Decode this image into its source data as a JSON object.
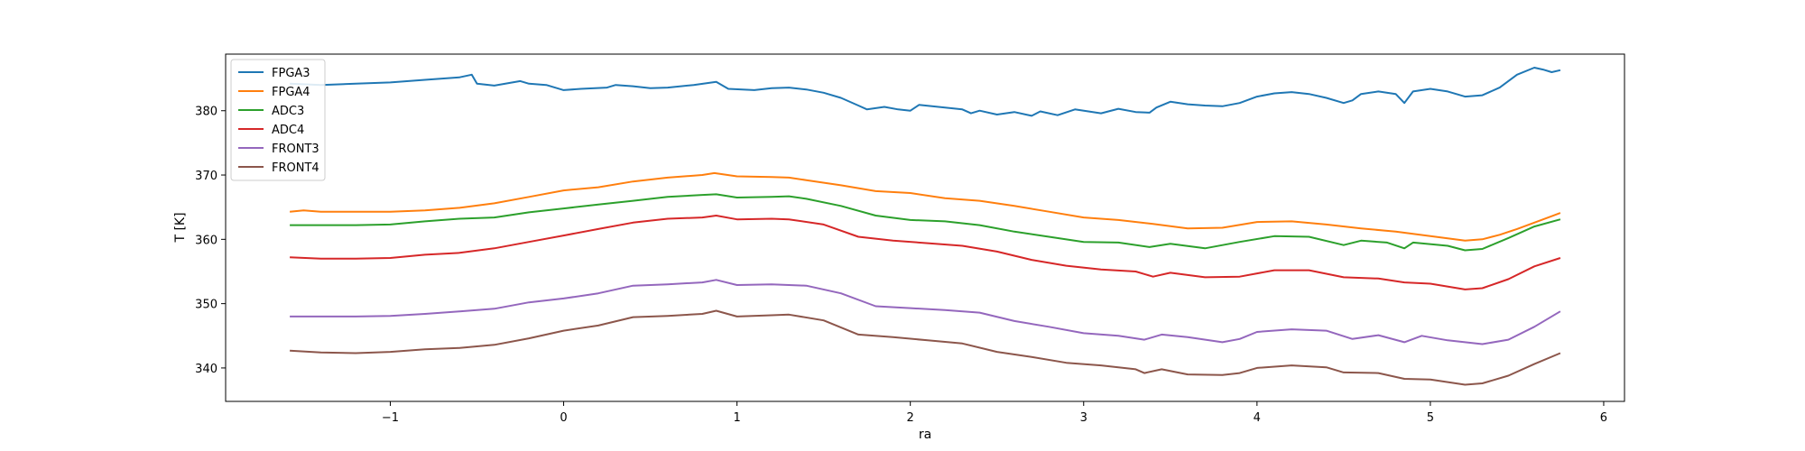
{
  "chart_data": {
    "type": "line",
    "title": "",
    "xlabel": "ra",
    "ylabel": "T [K]",
    "xlim": [
      -1.95,
      6.12
    ],
    "ylim": [
      334.8,
      388.8
    ],
    "xticks": [
      -1,
      0,
      1,
      2,
      3,
      4,
      5,
      6
    ],
    "yticks": [
      340,
      350,
      360,
      370,
      380
    ],
    "grid": false,
    "legend_position": "top-left",
    "series": [
      {
        "name": "FPGA3",
        "color": "#1f77b4",
        "points": [
          [
            -1.58,
            384.2
          ],
          [
            -1.4,
            384.0
          ],
          [
            -1.2,
            384.2
          ],
          [
            -1.0,
            384.4
          ],
          [
            -0.8,
            384.8
          ],
          [
            -0.6,
            385.2
          ],
          [
            -0.53,
            385.6
          ],
          [
            -0.5,
            384.2
          ],
          [
            -0.4,
            383.9
          ],
          [
            -0.25,
            384.6
          ],
          [
            -0.2,
            384.2
          ],
          [
            -0.1,
            384.0
          ],
          [
            0.0,
            383.2
          ],
          [
            0.1,
            383.4
          ],
          [
            0.25,
            383.6
          ],
          [
            0.3,
            384.0
          ],
          [
            0.4,
            383.8
          ],
          [
            0.5,
            383.5
          ],
          [
            0.6,
            383.6
          ],
          [
            0.75,
            384.0
          ],
          [
            0.88,
            384.5
          ],
          [
            0.95,
            383.4
          ],
          [
            1.1,
            383.2
          ],
          [
            1.2,
            383.5
          ],
          [
            1.3,
            383.6
          ],
          [
            1.4,
            383.3
          ],
          [
            1.5,
            382.8
          ],
          [
            1.6,
            382.0
          ],
          [
            1.7,
            380.8
          ],
          [
            1.75,
            380.2
          ],
          [
            1.85,
            380.6
          ],
          [
            1.93,
            380.2
          ],
          [
            2.0,
            380.0
          ],
          [
            2.05,
            380.9
          ],
          [
            2.2,
            380.5
          ],
          [
            2.3,
            380.2
          ],
          [
            2.35,
            379.6
          ],
          [
            2.4,
            380.0
          ],
          [
            2.5,
            379.4
          ],
          [
            2.6,
            379.8
          ],
          [
            2.7,
            379.2
          ],
          [
            2.75,
            379.9
          ],
          [
            2.85,
            379.3
          ],
          [
            2.95,
            380.2
          ],
          [
            3.1,
            379.6
          ],
          [
            3.2,
            380.3
          ],
          [
            3.3,
            379.8
          ],
          [
            3.38,
            379.7
          ],
          [
            3.42,
            380.5
          ],
          [
            3.5,
            381.4
          ],
          [
            3.6,
            381.0
          ],
          [
            3.7,
            380.8
          ],
          [
            3.8,
            380.7
          ],
          [
            3.9,
            381.2
          ],
          [
            4.0,
            382.2
          ],
          [
            4.1,
            382.7
          ],
          [
            4.2,
            382.9
          ],
          [
            4.3,
            382.6
          ],
          [
            4.4,
            382.0
          ],
          [
            4.5,
            381.2
          ],
          [
            4.55,
            381.6
          ],
          [
            4.6,
            382.6
          ],
          [
            4.7,
            383.0
          ],
          [
            4.8,
            382.6
          ],
          [
            4.85,
            381.2
          ],
          [
            4.9,
            383.0
          ],
          [
            5.0,
            383.4
          ],
          [
            5.1,
            383.0
          ],
          [
            5.2,
            382.2
          ],
          [
            5.3,
            382.4
          ],
          [
            5.4,
            383.6
          ],
          [
            5.5,
            385.6
          ],
          [
            5.6,
            386.7
          ],
          [
            5.65,
            386.4
          ],
          [
            5.7,
            386.0
          ],
          [
            5.75,
            386.3
          ]
        ]
      },
      {
        "name": "FPGA4",
        "color": "#ff7f0e",
        "points": [
          [
            -1.58,
            364.3
          ],
          [
            -1.5,
            364.5
          ],
          [
            -1.4,
            364.3
          ],
          [
            -1.2,
            364.3
          ],
          [
            -1.0,
            364.3
          ],
          [
            -0.8,
            364.5
          ],
          [
            -0.6,
            364.9
          ],
          [
            -0.4,
            365.6
          ],
          [
            -0.2,
            366.6
          ],
          [
            0.0,
            367.6
          ],
          [
            0.2,
            368.1
          ],
          [
            0.4,
            369.0
          ],
          [
            0.6,
            369.6
          ],
          [
            0.8,
            370.0
          ],
          [
            0.87,
            370.3
          ],
          [
            1.0,
            369.8
          ],
          [
            1.2,
            369.7
          ],
          [
            1.3,
            369.6
          ],
          [
            1.4,
            369.2
          ],
          [
            1.6,
            368.4
          ],
          [
            1.8,
            367.5
          ],
          [
            2.0,
            367.2
          ],
          [
            2.2,
            366.4
          ],
          [
            2.4,
            366.0
          ],
          [
            2.6,
            365.2
          ],
          [
            2.8,
            364.3
          ],
          [
            3.0,
            363.4
          ],
          [
            3.2,
            363.0
          ],
          [
            3.4,
            362.4
          ],
          [
            3.6,
            361.7
          ],
          [
            3.8,
            361.8
          ],
          [
            4.0,
            362.7
          ],
          [
            4.2,
            362.8
          ],
          [
            4.4,
            362.3
          ],
          [
            4.6,
            361.7
          ],
          [
            4.8,
            361.2
          ],
          [
            5.0,
            360.5
          ],
          [
            5.2,
            359.8
          ],
          [
            5.3,
            360.0
          ],
          [
            5.4,
            360.7
          ],
          [
            5.5,
            361.6
          ],
          [
            5.6,
            362.6
          ],
          [
            5.7,
            363.6
          ],
          [
            5.75,
            364.1
          ]
        ]
      },
      {
        "name": "ADC3",
        "color": "#2ca02c",
        "points": [
          [
            -1.58,
            362.2
          ],
          [
            -1.4,
            362.2
          ],
          [
            -1.2,
            362.2
          ],
          [
            -1.0,
            362.3
          ],
          [
            -0.8,
            362.8
          ],
          [
            -0.6,
            363.2
          ],
          [
            -0.4,
            363.4
          ],
          [
            -0.2,
            364.2
          ],
          [
            0.0,
            364.8
          ],
          [
            0.2,
            365.4
          ],
          [
            0.4,
            366.0
          ],
          [
            0.6,
            366.6
          ],
          [
            0.8,
            366.9
          ],
          [
            0.88,
            367.0
          ],
          [
            1.0,
            366.5
          ],
          [
            1.2,
            366.6
          ],
          [
            1.3,
            366.7
          ],
          [
            1.4,
            366.3
          ],
          [
            1.6,
            365.2
          ],
          [
            1.8,
            363.7
          ],
          [
            2.0,
            363.0
          ],
          [
            2.2,
            362.8
          ],
          [
            2.4,
            362.2
          ],
          [
            2.6,
            361.2
          ],
          [
            2.8,
            360.4
          ],
          [
            3.0,
            359.6
          ],
          [
            3.2,
            359.5
          ],
          [
            3.38,
            358.8
          ],
          [
            3.5,
            359.3
          ],
          [
            3.7,
            358.6
          ],
          [
            3.9,
            359.6
          ],
          [
            4.1,
            360.5
          ],
          [
            4.3,
            360.4
          ],
          [
            4.5,
            359.1
          ],
          [
            4.6,
            359.8
          ],
          [
            4.75,
            359.5
          ],
          [
            4.85,
            358.6
          ],
          [
            4.9,
            359.5
          ],
          [
            5.1,
            359.0
          ],
          [
            5.2,
            358.3
          ],
          [
            5.3,
            358.5
          ],
          [
            5.45,
            360.2
          ],
          [
            5.6,
            362.0
          ],
          [
            5.75,
            363.1
          ]
        ]
      },
      {
        "name": "ADC4",
        "color": "#d62728",
        "points": [
          [
            -1.58,
            357.2
          ],
          [
            -1.4,
            357.0
          ],
          [
            -1.2,
            357.0
          ],
          [
            -1.0,
            357.1
          ],
          [
            -0.8,
            357.6
          ],
          [
            -0.6,
            357.9
          ],
          [
            -0.4,
            358.6
          ],
          [
            -0.2,
            359.6
          ],
          [
            0.0,
            360.6
          ],
          [
            0.2,
            361.6
          ],
          [
            0.4,
            362.6
          ],
          [
            0.6,
            363.2
          ],
          [
            0.8,
            363.4
          ],
          [
            0.88,
            363.7
          ],
          [
            1.0,
            363.1
          ],
          [
            1.2,
            363.2
          ],
          [
            1.3,
            363.1
          ],
          [
            1.5,
            362.3
          ],
          [
            1.7,
            360.4
          ],
          [
            1.9,
            359.8
          ],
          [
            2.1,
            359.4
          ],
          [
            2.3,
            359.0
          ],
          [
            2.5,
            358.1
          ],
          [
            2.7,
            356.8
          ],
          [
            2.9,
            355.9
          ],
          [
            3.1,
            355.3
          ],
          [
            3.3,
            355.0
          ],
          [
            3.4,
            354.2
          ],
          [
            3.5,
            354.8
          ],
          [
            3.7,
            354.1
          ],
          [
            3.9,
            354.2
          ],
          [
            4.1,
            355.2
          ],
          [
            4.3,
            355.2
          ],
          [
            4.5,
            354.1
          ],
          [
            4.7,
            353.9
          ],
          [
            4.85,
            353.3
          ],
          [
            5.0,
            353.1
          ],
          [
            5.2,
            352.2
          ],
          [
            5.3,
            352.4
          ],
          [
            5.45,
            353.8
          ],
          [
            5.6,
            355.8
          ],
          [
            5.75,
            357.1
          ]
        ]
      },
      {
        "name": "FRONT3",
        "color": "#9467bd",
        "points": [
          [
            -1.58,
            348.0
          ],
          [
            -1.4,
            348.0
          ],
          [
            -1.2,
            348.0
          ],
          [
            -1.0,
            348.1
          ],
          [
            -0.8,
            348.4
          ],
          [
            -0.6,
            348.8
          ],
          [
            -0.4,
            349.2
          ],
          [
            -0.2,
            350.2
          ],
          [
            0.0,
            350.8
          ],
          [
            0.2,
            351.6
          ],
          [
            0.4,
            352.8
          ],
          [
            0.6,
            353.0
          ],
          [
            0.8,
            353.3
          ],
          [
            0.88,
            353.7
          ],
          [
            1.0,
            352.9
          ],
          [
            1.2,
            353.0
          ],
          [
            1.4,
            352.8
          ],
          [
            1.6,
            351.6
          ],
          [
            1.8,
            349.6
          ],
          [
            2.0,
            349.3
          ],
          [
            2.2,
            349.0
          ],
          [
            2.4,
            348.6
          ],
          [
            2.6,
            347.3
          ],
          [
            2.8,
            346.4
          ],
          [
            3.0,
            345.4
          ],
          [
            3.2,
            345.0
          ],
          [
            3.35,
            344.4
          ],
          [
            3.45,
            345.2
          ],
          [
            3.6,
            344.8
          ],
          [
            3.8,
            344.0
          ],
          [
            3.9,
            344.5
          ],
          [
            4.0,
            345.6
          ],
          [
            4.2,
            346.0
          ],
          [
            4.4,
            345.8
          ],
          [
            4.55,
            344.5
          ],
          [
            4.7,
            345.1
          ],
          [
            4.85,
            344.0
          ],
          [
            4.95,
            345.0
          ],
          [
            5.1,
            344.3
          ],
          [
            5.3,
            343.7
          ],
          [
            5.45,
            344.4
          ],
          [
            5.6,
            346.4
          ],
          [
            5.75,
            348.8
          ]
        ]
      },
      {
        "name": "FRONT4",
        "color": "#8c564b",
        "points": [
          [
            -1.58,
            342.7
          ],
          [
            -1.4,
            342.4
          ],
          [
            -1.2,
            342.3
          ],
          [
            -1.0,
            342.5
          ],
          [
            -0.8,
            342.9
          ],
          [
            -0.6,
            343.1
          ],
          [
            -0.4,
            343.6
          ],
          [
            -0.2,
            344.6
          ],
          [
            0.0,
            345.8
          ],
          [
            0.2,
            346.6
          ],
          [
            0.4,
            347.9
          ],
          [
            0.6,
            348.1
          ],
          [
            0.8,
            348.4
          ],
          [
            0.88,
            348.9
          ],
          [
            1.0,
            348.0
          ],
          [
            1.2,
            348.2
          ],
          [
            1.3,
            348.3
          ],
          [
            1.5,
            347.4
          ],
          [
            1.7,
            345.2
          ],
          [
            1.9,
            344.8
          ],
          [
            2.1,
            344.3
          ],
          [
            2.3,
            343.8
          ],
          [
            2.5,
            342.5
          ],
          [
            2.7,
            341.7
          ],
          [
            2.9,
            340.8
          ],
          [
            3.1,
            340.4
          ],
          [
            3.3,
            339.8
          ],
          [
            3.35,
            339.2
          ],
          [
            3.45,
            339.8
          ],
          [
            3.6,
            339.0
          ],
          [
            3.8,
            338.9
          ],
          [
            3.9,
            339.2
          ],
          [
            4.0,
            340.0
          ],
          [
            4.2,
            340.4
          ],
          [
            4.4,
            340.1
          ],
          [
            4.5,
            339.3
          ],
          [
            4.7,
            339.2
          ],
          [
            4.85,
            338.3
          ],
          [
            5.0,
            338.2
          ],
          [
            5.2,
            337.4
          ],
          [
            5.3,
            337.6
          ],
          [
            5.45,
            338.8
          ],
          [
            5.6,
            340.6
          ],
          [
            5.75,
            342.3
          ]
        ]
      }
    ]
  }
}
